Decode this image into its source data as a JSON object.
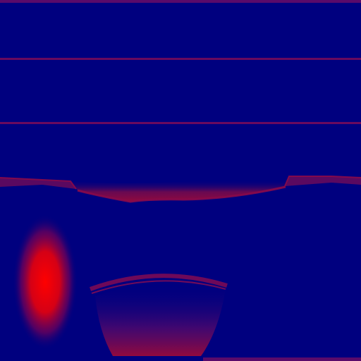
{
  "colors": {
    "background": "#00007f",
    "line": "#7a0a55",
    "glow": "#ff0000",
    "glow_mid": "#b0003a",
    "band": "#8a0a40"
  },
  "texture": {
    "kind": "heatmap-style texture / UV mask",
    "elements": [
      "top-edge-line",
      "horizontal-line-1",
      "horizontal-line-2",
      "wavy-band",
      "left-ear-strip",
      "right-ear-strip",
      "red-glow-blob",
      "bowl-shape",
      "bottom-edge-line"
    ]
  }
}
